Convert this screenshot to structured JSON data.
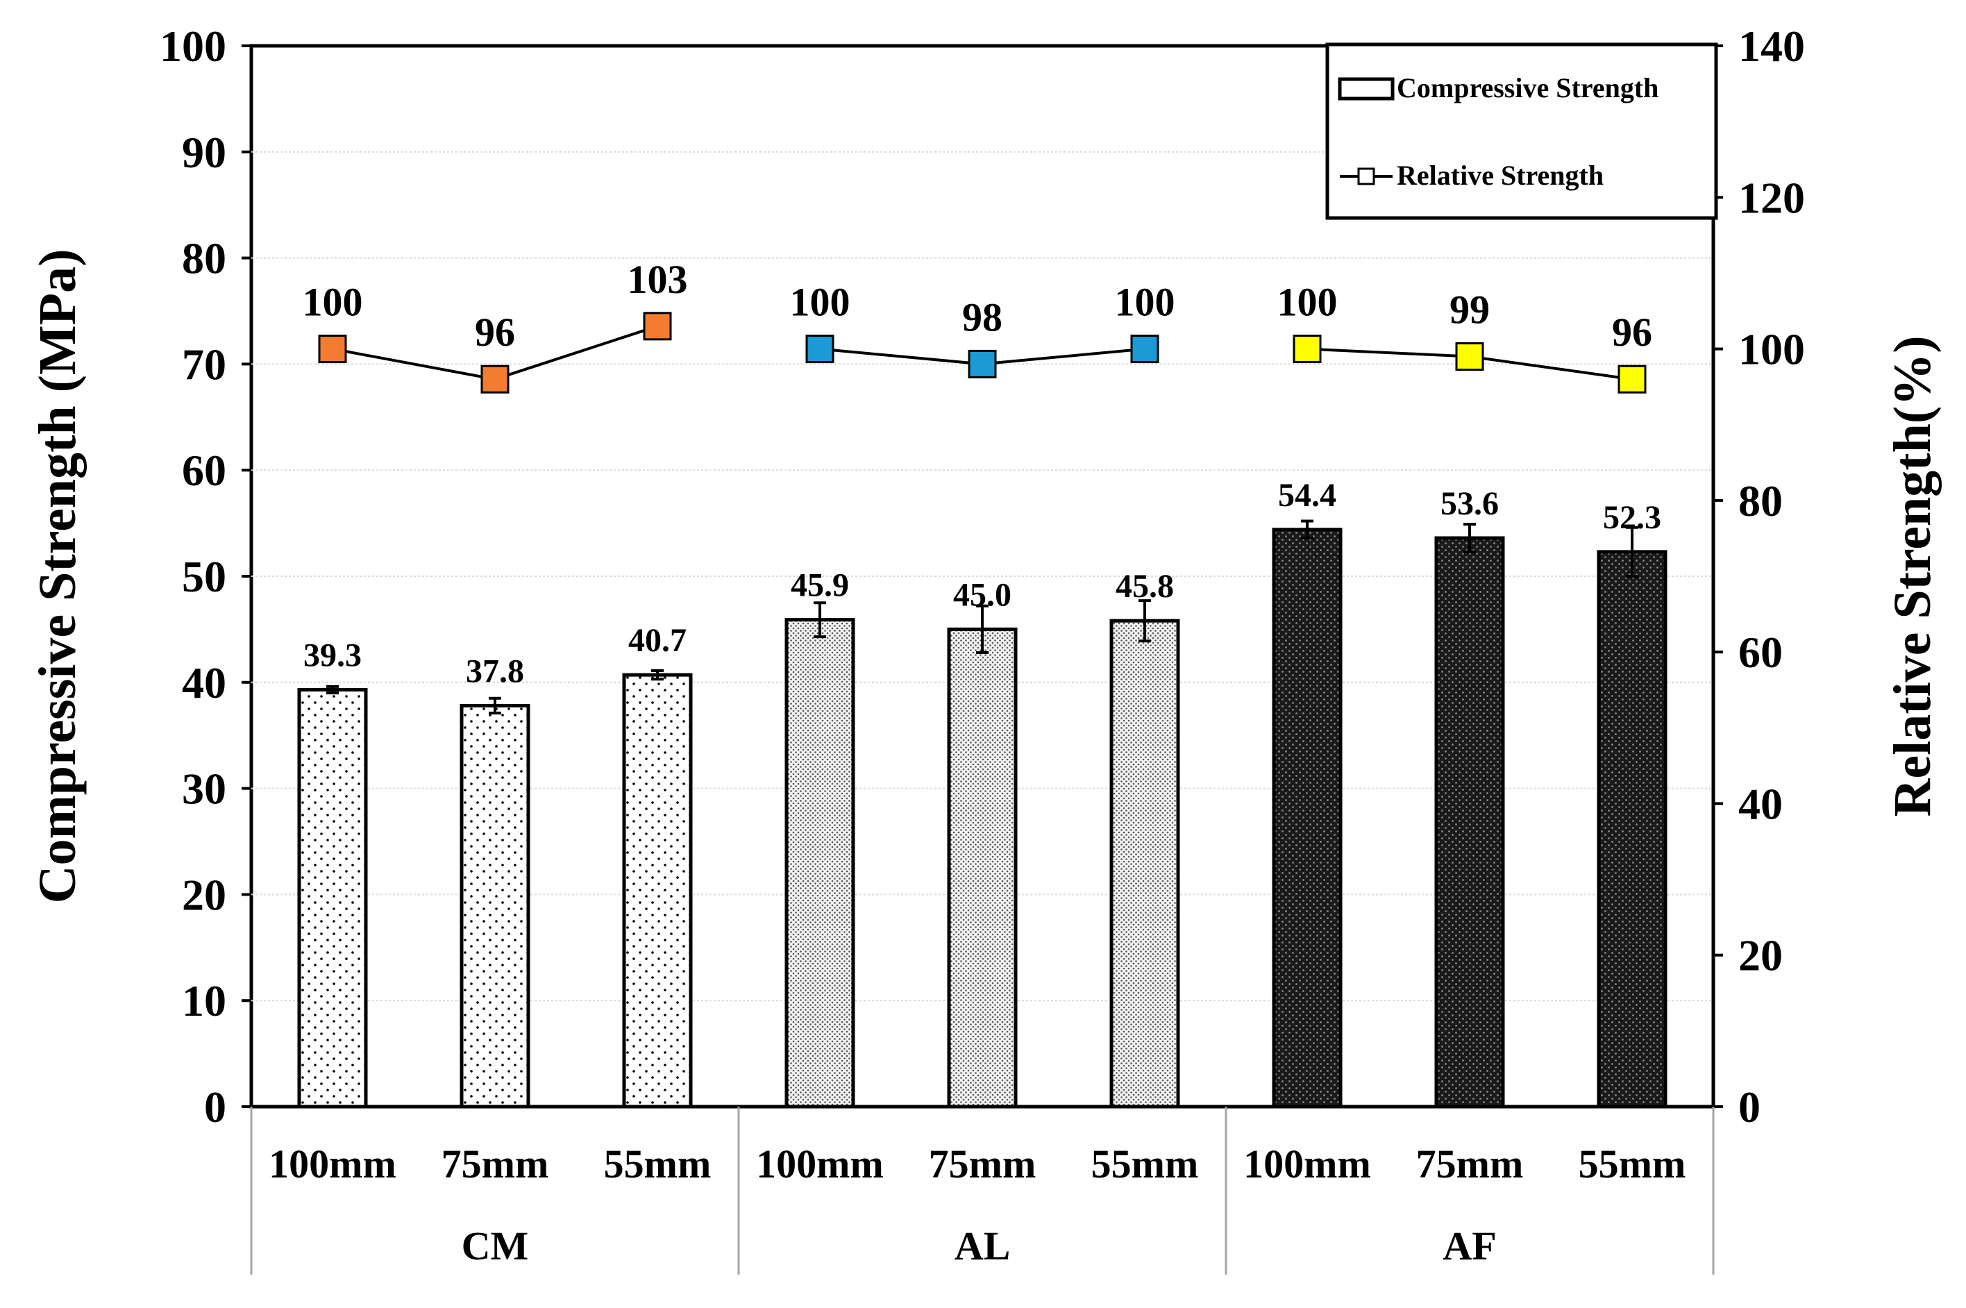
{
  "chart_data": {
    "type": "bar",
    "groups": [
      "CM",
      "AL",
      "AF"
    ],
    "categories": [
      "100mm",
      "75mm",
      "55mm",
      "100mm",
      "75mm",
      "55mm",
      "100mm",
      "75mm",
      "55mm"
    ],
    "series": [
      {
        "name": "Compressive Strength",
        "axis": "left",
        "values": [
          39.3,
          37.8,
          40.7,
          45.9,
          45.0,
          45.8,
          54.4,
          53.6,
          52.3
        ],
        "labels": [
          "39.3",
          "37.8",
          "40.7",
          "45.9",
          "45.0",
          "45.8",
          "54.4",
          "53.6",
          "52.3"
        ],
        "errors": [
          0.3,
          0.7,
          0.4,
          1.6,
          2.2,
          1.9,
          0.8,
          1.3,
          2.3
        ],
        "patterns": [
          "dots-sparse",
          "dots-sparse",
          "dots-sparse",
          "dots-dense",
          "dots-dense",
          "dots-dense",
          "dark-crosshatch",
          "dark-crosshatch",
          "dark-crosshatch"
        ]
      },
      {
        "name": "Relative Strength",
        "axis": "right",
        "type": "line",
        "values": [
          100,
          96,
          103,
          100,
          98,
          100,
          100,
          99,
          96
        ],
        "labels": [
          "100",
          "96",
          "103",
          "100",
          "98",
          "100",
          "100",
          "99",
          "96"
        ],
        "marker_colors": [
          "#f47c30",
          "#f47c30",
          "#f47c30",
          "#1b9ad6",
          "#1b9ad6",
          "#1b9ad6",
          "#ffff00",
          "#ffff00",
          "#ffff00"
        ]
      }
    ],
    "ylabel": "Compressive Strength (MPa)",
    "y2label": "Relative Strength(%)",
    "ylim": [
      0,
      100
    ],
    "y2lim": [
      0,
      140
    ],
    "yticks": [
      0,
      10,
      20,
      30,
      40,
      50,
      60,
      70,
      80,
      90,
      100
    ],
    "y2ticks": [
      0,
      20,
      40,
      60,
      80,
      100,
      120,
      140
    ],
    "grid": true,
    "legend": {
      "position": "top-right",
      "entries": [
        "Compressive Strength",
        "Relative Strength"
      ]
    }
  }
}
